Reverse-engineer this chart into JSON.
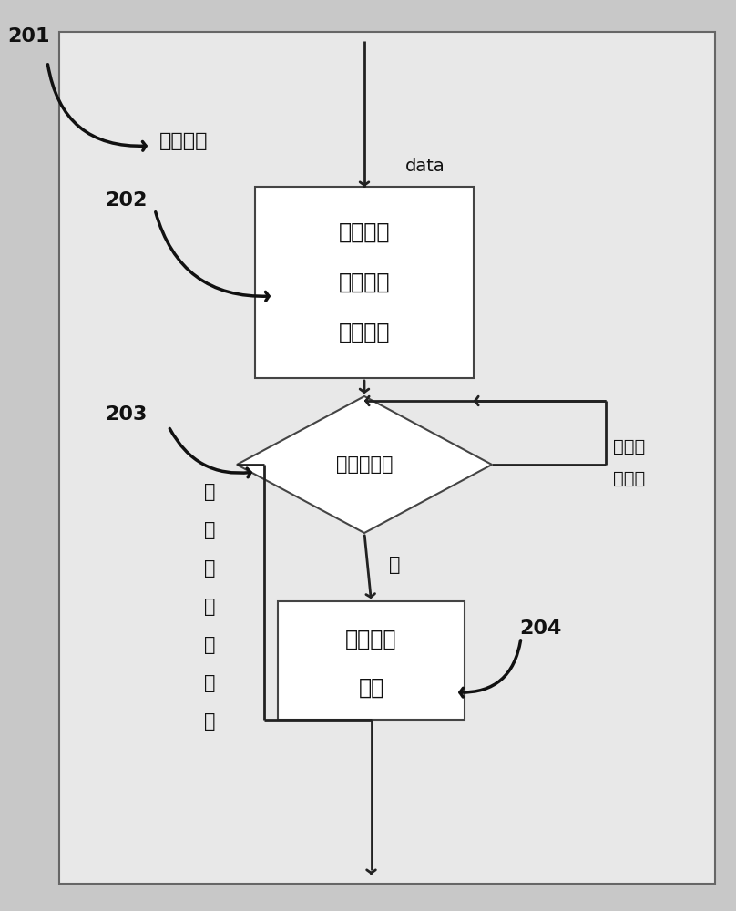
{
  "bg_outer": "#c8c8c8",
  "bg_inner": "#e8e8e8",
  "box_bg": "#ffffff",
  "box_edge": "#333333",
  "text_color": "#111111",
  "border_color": "#666666",
  "label_201": "201",
  "label_202": "202",
  "label_203": "203",
  "label_204": "204",
  "label_data_analysis": "数据分析",
  "label_data": "data",
  "box1_line1": "对收集的",
  "box1_line2": "数据进行",
  "box1_line3": "初步拟合",
  "diamond_text": "是否需调整",
  "box2_line1": "调整拟合",
  "box2_line2": "曲线",
  "label_no_new_1": "否",
  "label_no_new_2": "，",
  "label_no_new_3": "没有新",
  "label_no_new_4": "数据",
  "label_no_have_new_1": "否，有",
  "label_no_have_new_2": "新数据",
  "label_yes": "是",
  "fig_width": 8.08,
  "fig_height": 10.0
}
